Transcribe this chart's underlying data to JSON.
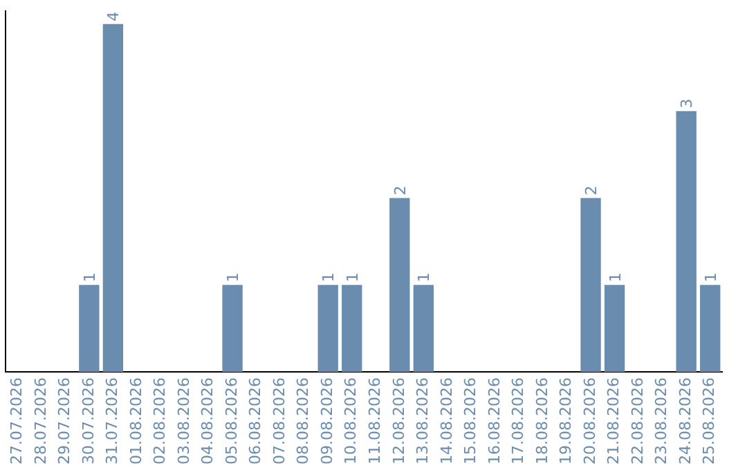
{
  "chart_data": {
    "type": "bar",
    "categories": [
      "27.07.2026",
      "28.07.2026",
      "29.07.2026",
      "30.07.2026",
      "31.07.2026",
      "01.08.2026",
      "02.08.2026",
      "03.08.2026",
      "04.08.2026",
      "05.08.2026",
      "06.08.2026",
      "07.08.2026",
      "08.08.2026",
      "09.08.2026",
      "10.08.2026",
      "11.08.2026",
      "12.08.2026",
      "13.08.2026",
      "14.08.2026",
      "15.08.2026",
      "16.08.2026",
      "17.08.2026",
      "18.08.2026",
      "19.08.2026",
      "20.08.2026",
      "21.08.2026",
      "22.08.2026",
      "23.08.2026",
      "24.08.2026",
      "25.08.2026"
    ],
    "values": [
      0,
      0,
      0,
      1,
      4,
      0,
      0,
      0,
      0,
      1,
      0,
      0,
      0,
      1,
      1,
      0,
      2,
      1,
      0,
      0,
      0,
      0,
      0,
      0,
      2,
      1,
      0,
      0,
      3,
      1
    ],
    "value_labels": [
      null,
      null,
      null,
      "1",
      "4",
      null,
      null,
      null,
      null,
      "1",
      null,
      null,
      null,
      "1",
      "1",
      null,
      "2",
      "1",
      null,
      null,
      null,
      null,
      null,
      null,
      "2",
      "1",
      null,
      null,
      "3",
      "1"
    ],
    "color": "#6a8caf",
    "ylim": [
      0,
      4.15
    ],
    "grid": false,
    "legend": false,
    "tick_labels": "x"
  }
}
